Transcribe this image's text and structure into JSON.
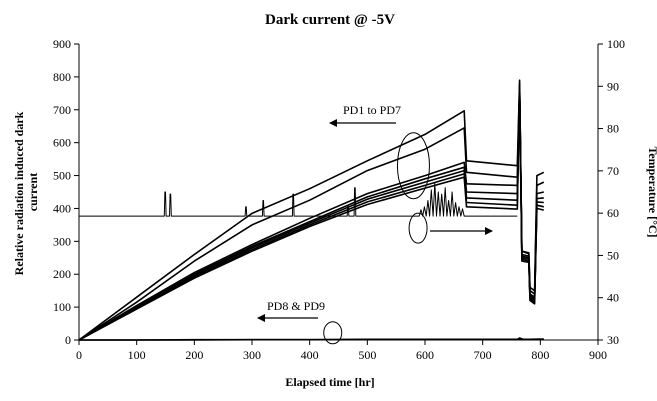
{
  "chart_data": {
    "type": "line",
    "title": "Dark current @ -5V",
    "xlabel": "Elapsed time [hr]",
    "ylabel": "Relative radiation induced dark current",
    "ylabel_lines": [
      "Relative radiation induced dark",
      "current"
    ],
    "y2label": "Temperature [°C]",
    "xlim": [
      0,
      900
    ],
    "ylim": [
      0,
      900
    ],
    "y2lim": [
      30,
      100
    ],
    "x_ticks": [
      0,
      100,
      200,
      300,
      400,
      500,
      600,
      700,
      800,
      900
    ],
    "y_ticks": [
      0,
      100,
      200,
      300,
      400,
      500,
      600,
      700,
      800,
      900
    ],
    "y2_ticks": [
      30,
      40,
      50,
      60,
      70,
      80,
      90,
      100
    ],
    "grid": false,
    "legend": "none",
    "series": [
      {
        "axis": "left",
        "color": "#000000",
        "x": [
          0,
          100,
          200,
          300,
          400,
          500,
          600,
          668,
          672,
          760,
          764,
          768,
          780,
          782,
          790,
          794,
          806
        ],
        "y": [
          0,
          130,
          260,
          385,
          460,
          545,
          625,
          697,
          545,
          530,
          790,
          270,
          265,
          160,
          150,
          500,
          510
        ]
      },
      {
        "axis": "left",
        "color": "#000000",
        "x": [
          0,
          100,
          200,
          300,
          400,
          500,
          600,
          668,
          672,
          760,
          764,
          768,
          780,
          782,
          790,
          794,
          806
        ],
        "y": [
          0,
          115,
          240,
          350,
          425,
          515,
          580,
          645,
          510,
          495,
          780,
          270,
          262,
          150,
          140,
          470,
          480
        ]
      },
      {
        "axis": "left",
        "color": "#000000",
        "x": [
          0,
          100,
          200,
          300,
          400,
          500,
          600,
          668,
          672,
          760,
          764,
          768,
          780,
          782,
          790,
          794,
          806
        ],
        "y": [
          0,
          105,
          205,
          290,
          370,
          445,
          500,
          540,
          475,
          470,
          775,
          260,
          255,
          140,
          130,
          445,
          450
        ]
      },
      {
        "axis": "left",
        "color": "#000000",
        "x": [
          0,
          100,
          200,
          300,
          400,
          500,
          600,
          668,
          672,
          760,
          764,
          768,
          780,
          782,
          790,
          794,
          806
        ],
        "y": [
          0,
          100,
          200,
          285,
          360,
          435,
          490,
          525,
          450,
          445,
          770,
          255,
          250,
          135,
          125,
          430,
          432
        ]
      },
      {
        "axis": "left",
        "color": "#000000",
        "x": [
          0,
          100,
          200,
          300,
          400,
          500,
          600,
          668,
          672,
          760,
          764,
          768,
          780,
          782,
          790,
          794,
          806
        ],
        "y": [
          0,
          98,
          196,
          280,
          355,
          428,
          480,
          515,
          432,
          425,
          765,
          250,
          245,
          130,
          120,
          420,
          418
        ]
      },
      {
        "axis": "left",
        "color": "#000000",
        "x": [
          0,
          100,
          200,
          300,
          400,
          500,
          600,
          668,
          672,
          760,
          764,
          768,
          780,
          782,
          790,
          794,
          806
        ],
        "y": [
          0,
          96,
          192,
          275,
          350,
          420,
          470,
          505,
          418,
          410,
          760,
          245,
          240,
          125,
          115,
          410,
          405
        ]
      },
      {
        "axis": "left",
        "color": "#000000",
        "x": [
          0,
          100,
          200,
          300,
          400,
          500,
          600,
          668,
          672,
          760,
          764,
          768,
          780,
          782,
          790,
          794,
          806
        ],
        "y": [
          0,
          94,
          188,
          270,
          345,
          412,
          462,
          495,
          405,
          398,
          755,
          240,
          236,
          120,
          110,
          400,
          395
        ]
      },
      {
        "axis": "left",
        "color": "#000000",
        "x": [
          0,
          100,
          200,
          300,
          400,
          500,
          600,
          700,
          760,
          764,
          770,
          780,
          800,
          806
        ],
        "y": [
          0,
          0,
          1,
          1,
          1,
          2,
          2,
          2,
          2,
          6,
          2,
          2,
          3,
          3
        ]
      },
      {
        "axis": "left",
        "color": "#000000",
        "x": [
          0,
          100,
          200,
          300,
          400,
          500,
          600,
          700,
          760,
          764,
          770,
          780,
          800,
          806
        ],
        "y": [
          0,
          0,
          0,
          1,
          1,
          1,
          1,
          1,
          1,
          4,
          1,
          1,
          2,
          2
        ]
      },
      {
        "axis": "right",
        "color": "#000000",
        "x": [
          0,
          148,
          149,
          150,
          151,
          157,
          158,
          159,
          160,
          288,
          289,
          290,
          291,
          318,
          319,
          320,
          321,
          370,
          371,
          372,
          373,
          465,
          466,
          467,
          468,
          477,
          478,
          479,
          480,
          590,
          593,
          596,
          599,
          602,
          605,
          608,
          611,
          614,
          617,
          620,
          623,
          626,
          629,
          632,
          635,
          638,
          641,
          644,
          647,
          650,
          653,
          656,
          659,
          662,
          665,
          668,
          760
        ],
        "y": [
          59.3,
          59.3,
          65,
          65,
          59.3,
          59.3,
          64.5,
          64.5,
          59.3,
          59.3,
          61.5,
          61.5,
          59.3,
          59.3,
          63,
          63,
          59.3,
          59.3,
          64.5,
          64.5,
          59.3,
          59.3,
          61.8,
          61.8,
          59.3,
          59.3,
          66,
          66,
          59.3,
          59.3,
          60.8,
          59.3,
          61.5,
          59.3,
          63,
          59.3,
          65.5,
          59.3,
          67,
          59.3,
          65,
          59.3,
          64.5,
          59.3,
          66,
          59.3,
          63,
          59.3,
          65,
          59.3,
          62.5,
          59.3,
          61.5,
          59.3,
          61,
          59.3,
          59.3
        ]
      }
    ],
    "annotations": [
      {
        "text": "PD1 to PD7"
      },
      {
        "text": "PD8 & PD9"
      }
    ]
  }
}
